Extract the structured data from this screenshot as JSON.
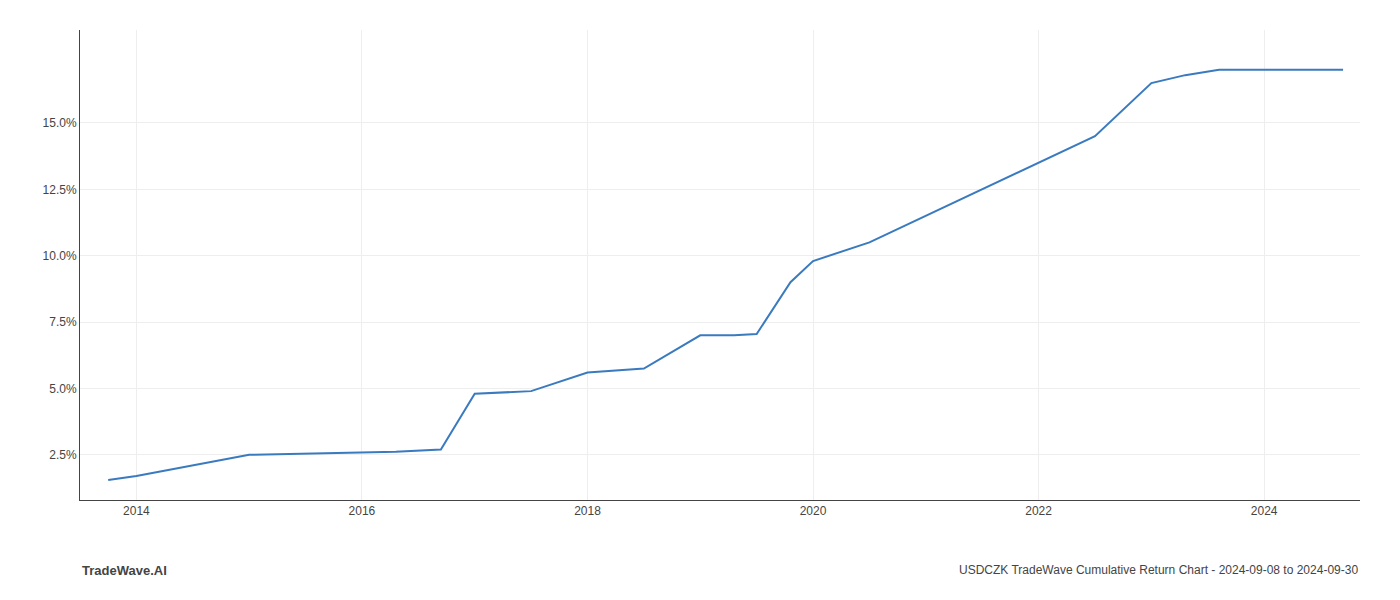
{
  "chart_data": {
    "type": "line",
    "annotations": [
      "TradeWave.AI",
      "USDCZK TradeWave Cumulative Return Chart - 2024-09-08 to 2024-09-30"
    ],
    "x": [
      2013.75,
      2014.0,
      2015.0,
      2016.0,
      2016.3,
      2016.7,
      2017.0,
      2017.5,
      2018.0,
      2018.5,
      2019.0,
      2019.3,
      2019.5,
      2019.8,
      2020.0,
      2020.5,
      2021.0,
      2021.5,
      2022.0,
      2022.5,
      2023.0,
      2023.3,
      2023.6,
      2024.0,
      2024.7
    ],
    "values": [
      1.55,
      1.7,
      2.5,
      2.6,
      2.62,
      2.7,
      4.8,
      4.9,
      5.6,
      5.75,
      7.0,
      7.0,
      7.05,
      9.0,
      9.8,
      10.5,
      11.5,
      12.5,
      13.5,
      14.5,
      16.5,
      16.8,
      17.0,
      17.0,
      17.0
    ],
    "color": "#3a7abf",
    "xlim": [
      2013.5,
      2024.85
    ],
    "ylim": [
      0.8,
      18.5
    ],
    "xticks": [
      2014,
      2016,
      2018,
      2020,
      2022,
      2024
    ],
    "yticks": [
      {
        "value": 2.5,
        "label": "2.5%"
      },
      {
        "value": 5.0,
        "label": "5.0%"
      },
      {
        "value": 7.5,
        "label": "7.5%"
      },
      {
        "value": 10.0,
        "label": "10.0%"
      },
      {
        "value": 12.5,
        "label": "12.5%"
      },
      {
        "value": 15.0,
        "label": "15.0%"
      }
    ],
    "grid": true
  }
}
